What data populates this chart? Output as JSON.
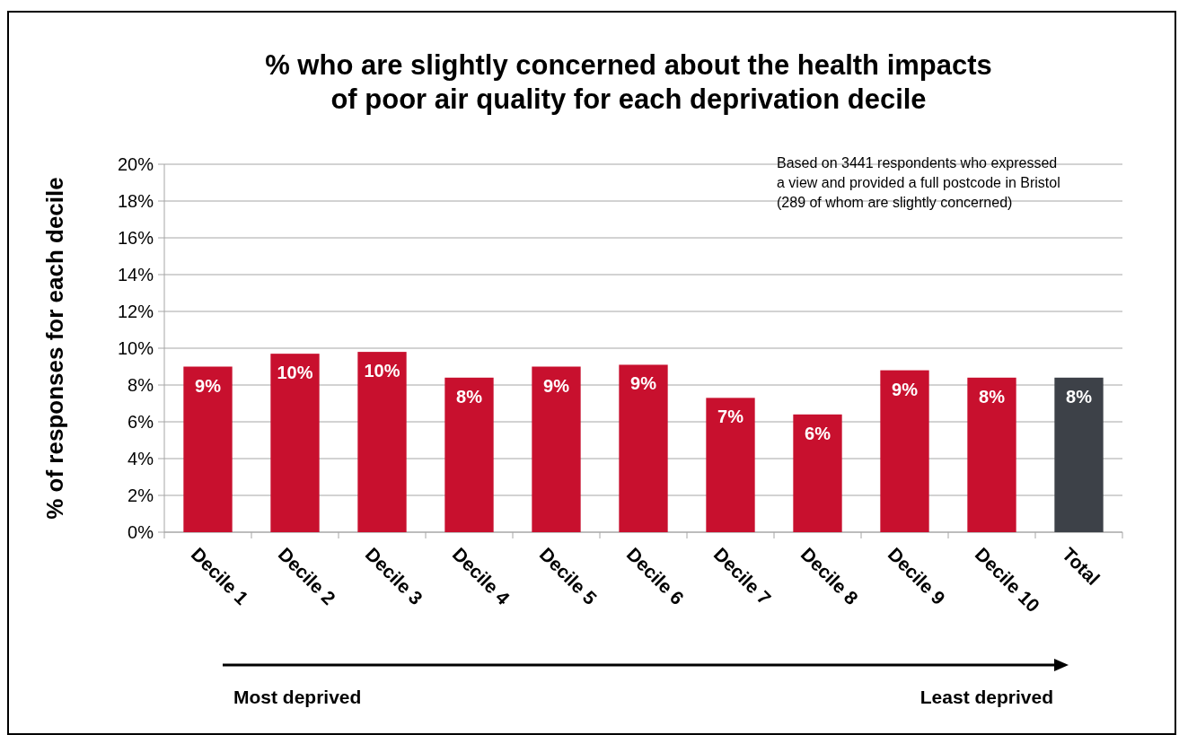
{
  "chart_data": {
    "type": "bar",
    "title": "% who are slightly concerned about the health impacts\nof poor air quality for each deprivation decile",
    "ylabel": "% of responses for each decile",
    "categories": [
      "Decile 1",
      "Decile 2",
      "Decile 3",
      "Decile 4",
      "Decile 5",
      "Decile 6",
      "Decile 7",
      "Decile 8",
      "Decile 9",
      "Decile 10",
      "Total"
    ],
    "values": [
      9.0,
      9.7,
      9.8,
      8.4,
      9.0,
      9.1,
      7.3,
      6.4,
      8.8,
      8.4,
      8.4
    ],
    "value_labels": [
      "9%",
      "10%",
      "10%",
      "8%",
      "9%",
      "9%",
      "7%",
      "6%",
      "9%",
      "8%",
      "8%"
    ],
    "colors": [
      "#c8102e",
      "#c8102e",
      "#c8102e",
      "#c8102e",
      "#c8102e",
      "#c8102e",
      "#c8102e",
      "#c8102e",
      "#c8102e",
      "#c8102e",
      "#3d4148"
    ],
    "ylim": [
      0,
      20
    ],
    "yticks": [
      {
        "value": 0,
        "label": "0%"
      },
      {
        "value": 2,
        "label": "2%"
      },
      {
        "value": 4,
        "label": "4%"
      },
      {
        "value": 6,
        "label": "6%"
      },
      {
        "value": 8,
        "label": "8%"
      },
      {
        "value": 10,
        "label": "10%"
      },
      {
        "value": 12,
        "label": "12%"
      },
      {
        "value": 14,
        "label": "14%"
      },
      {
        "value": 16,
        "label": "16%"
      },
      {
        "value": 18,
        "label": "18%"
      },
      {
        "value": 20,
        "label": "20%"
      }
    ],
    "grid": "y",
    "annotations": [
      "Based on 3441 respondents who expressed\na view and provided a full postcode in Bristol\n(289 of whom are slightly concerned)",
      "Most deprived",
      "Least deprived"
    ]
  }
}
